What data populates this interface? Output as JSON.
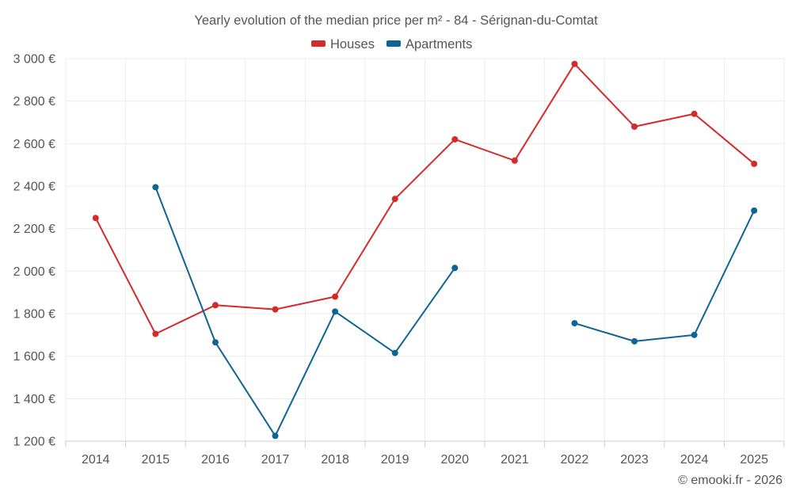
{
  "chart_data": {
    "type": "line",
    "title": "Yearly evolution of the median price per m² - 84 - Sérignan-du-Comtat",
    "xlabel": "",
    "ylabel": "",
    "categories": [
      "2014",
      "2015",
      "2016",
      "2017",
      "2018",
      "2019",
      "2020",
      "2021",
      "2022",
      "2023",
      "2024",
      "2025"
    ],
    "ylim": [
      1200,
      3000
    ],
    "y_ticks": [
      1200,
      1400,
      1600,
      1800,
      2000,
      2200,
      2400,
      2600,
      2800,
      3000
    ],
    "y_tick_labels": [
      "1 200 €",
      "1 400 €",
      "1 600 €",
      "1 800 €",
      "2 000 €",
      "2 200 €",
      "2 400 €",
      "2 600 €",
      "2 800 €",
      "3 000 €"
    ],
    "grid": true,
    "legend_position": "top-center",
    "series": [
      {
        "name": "Houses",
        "color": "#d42a2a",
        "values": [
          2250,
          1705,
          1840,
          1820,
          1880,
          2340,
          2620,
          2520,
          2975,
          2680,
          2740,
          2505
        ]
      },
      {
        "name": "Apartments",
        "color": "#0e6494",
        "values": [
          null,
          2395,
          1665,
          1225,
          1810,
          1615,
          2015,
          null,
          1755,
          1670,
          1700,
          2285
        ]
      }
    ]
  },
  "credit": "© emooki.fr - 2026"
}
